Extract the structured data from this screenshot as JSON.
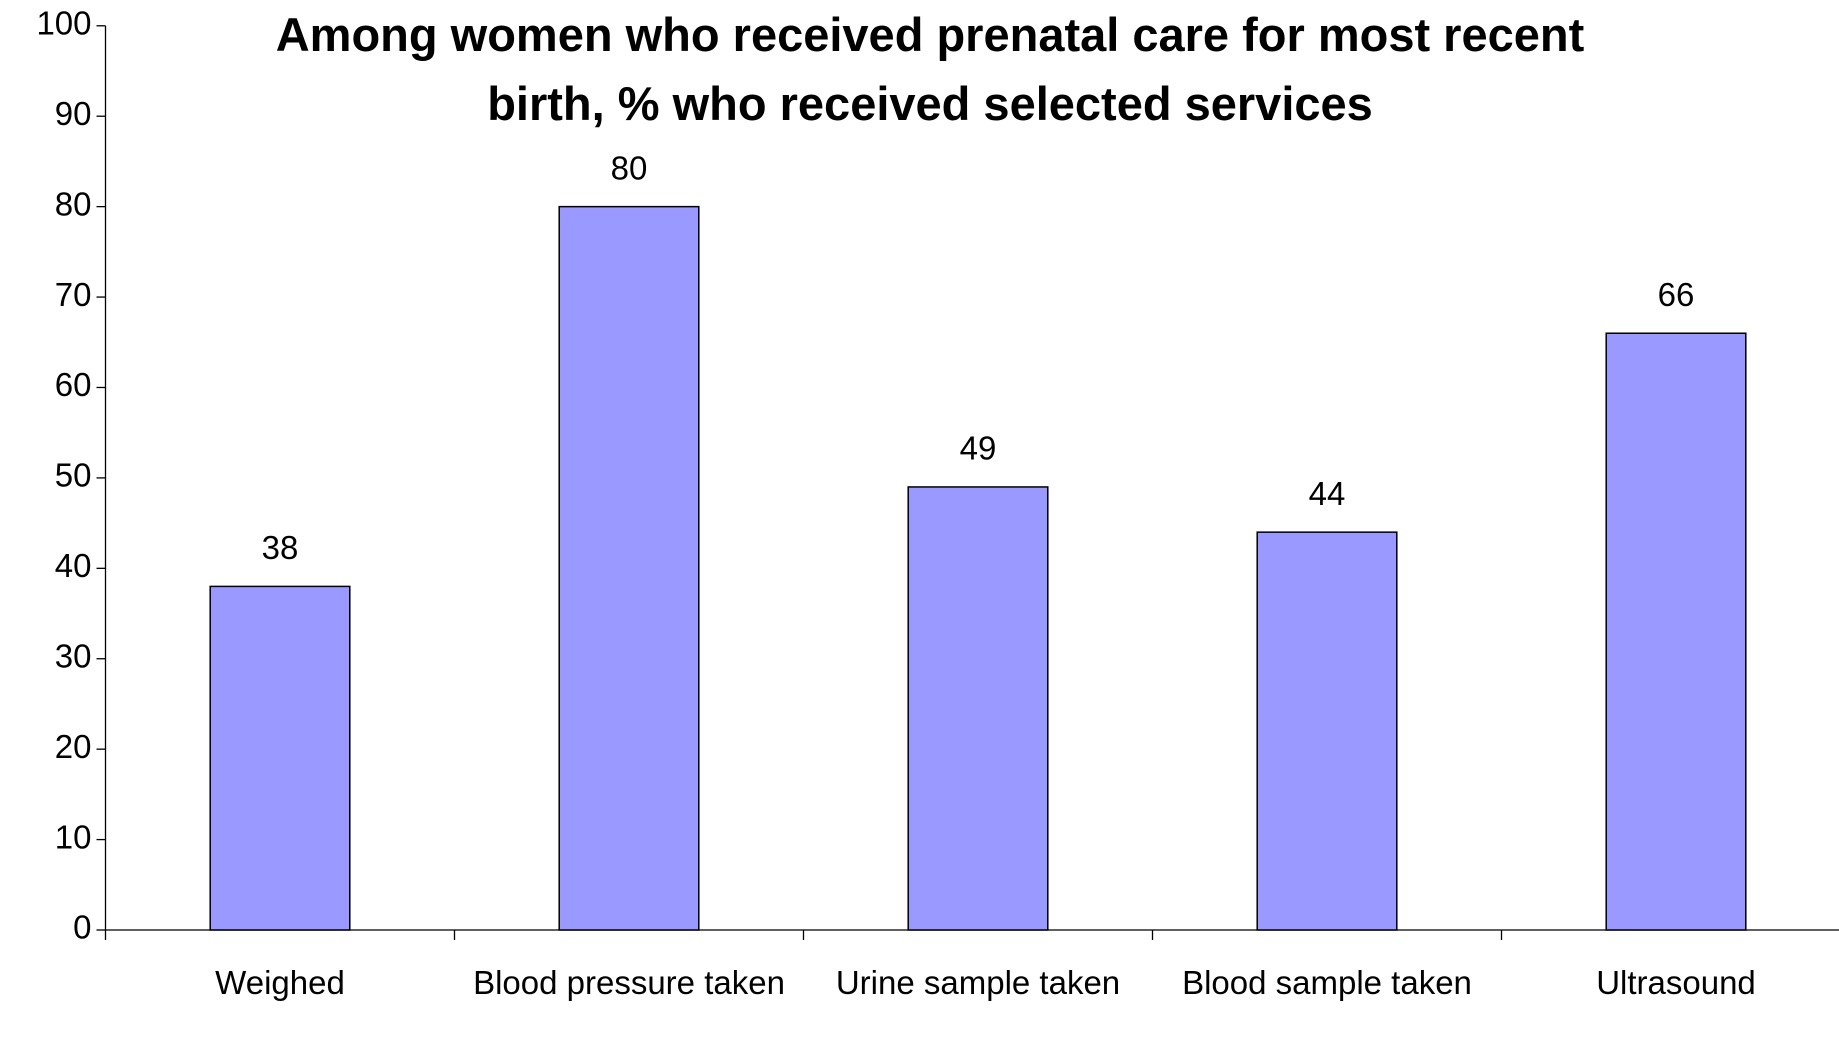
{
  "chart_data": {
    "type": "bar",
    "title": "Among women who received prenatal care for most recent birth, % who received selected services",
    "categories": [
      "Weighed",
      "Blood pressure taken",
      "Urine sample taken",
      "Blood sample taken",
      "Ultrasound"
    ],
    "values": [
      38,
      80,
      49,
      44,
      66
    ],
    "color": "#9999ff",
    "ylim": [
      0,
      100
    ],
    "yticks": [
      0,
      10,
      20,
      30,
      40,
      50,
      60,
      70,
      80,
      90,
      100
    ],
    "grid": false
  }
}
